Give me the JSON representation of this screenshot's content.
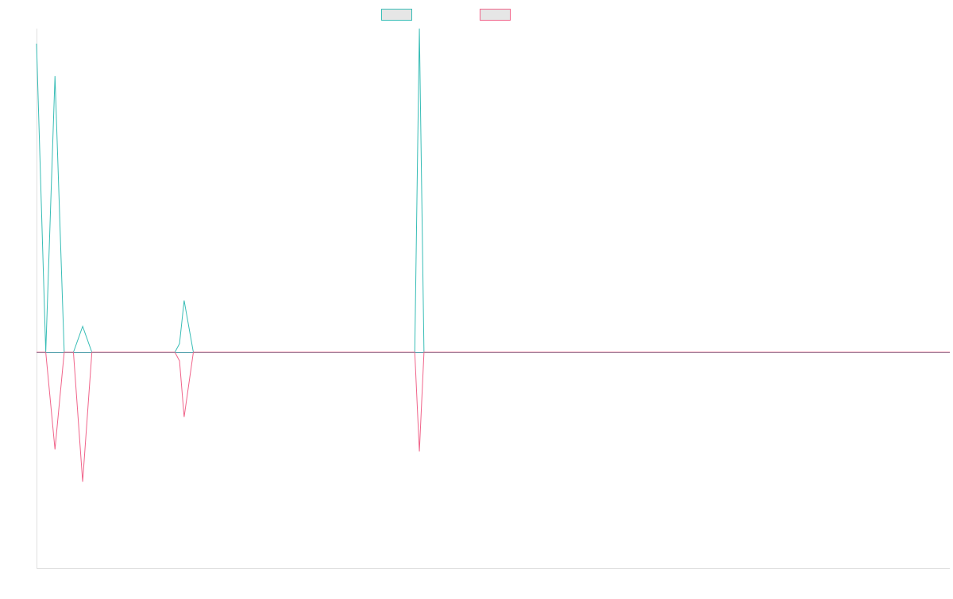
{
  "chart_data": {
    "type": "line",
    "title": "",
    "xlabel": "",
    "ylabel": "",
    "x_count": 100,
    "ylim": [
      -1,
      1.5
    ],
    "grid": false,
    "legend": "top-center",
    "series": [
      {
        "name": "",
        "color": "#38bdb6",
        "baseline": 0,
        "points": [
          [
            0,
            1.43
          ],
          [
            1,
            0
          ],
          [
            2,
            1.28
          ],
          [
            3,
            0
          ],
          [
            4,
            0
          ],
          [
            5,
            0.12
          ],
          [
            6,
            0
          ],
          [
            15,
            0
          ],
          [
            15.5,
            0.04
          ],
          [
            16,
            0.24
          ],
          [
            17,
            0
          ],
          [
            41,
            0
          ],
          [
            41.5,
            1.5
          ],
          [
            42,
            0
          ],
          [
            99,
            0
          ]
        ]
      },
      {
        "name": "",
        "color": "#f0648a",
        "baseline": 0,
        "points": [
          [
            0,
            0
          ],
          [
            1,
            0
          ],
          [
            2,
            -0.45
          ],
          [
            3,
            0
          ],
          [
            4,
            0
          ],
          [
            5,
            -0.6
          ],
          [
            6,
            0
          ],
          [
            15,
            0
          ],
          [
            15.5,
            -0.04
          ],
          [
            16,
            -0.3
          ],
          [
            17,
            0
          ],
          [
            41,
            0
          ],
          [
            41.5,
            -0.46
          ],
          [
            42,
            0
          ],
          [
            99,
            0
          ]
        ]
      }
    ]
  }
}
